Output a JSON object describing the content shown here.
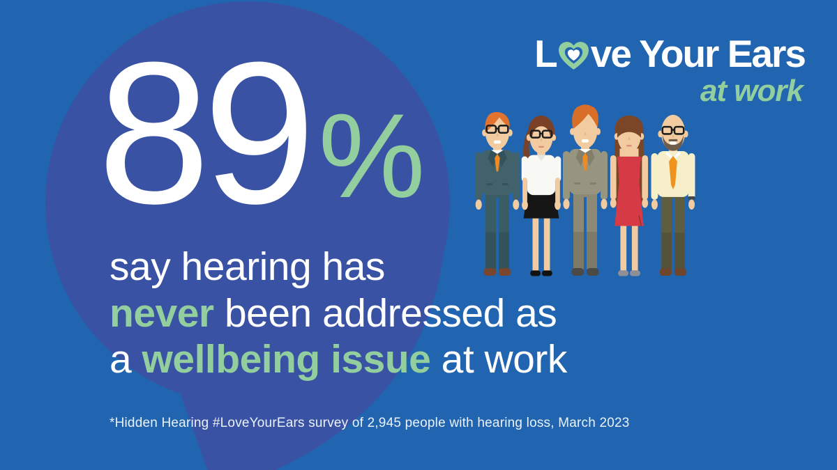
{
  "page": {
    "background": "#2165B0",
    "bubble_color": "#3A52A4"
  },
  "colors": {
    "green": "#92CE9E",
    "white": "#FFFFFF"
  },
  "stat": {
    "value": "89",
    "unit": "%"
  },
  "statement": {
    "lines": [
      [
        {
          "text": "say hearing has",
          "style": "white"
        }
      ],
      [
        {
          "text": "never",
          "style": "green"
        },
        {
          "text": " been addressed as",
          "style": "white"
        }
      ],
      [
        {
          "text": "a ",
          "style": "white"
        },
        {
          "text": "wellbeing issue",
          "style": "green"
        },
        {
          "text": " at work",
          "style": "white"
        }
      ]
    ]
  },
  "footnote": "*Hidden Hearing #LoveYourEars survey of 2,945 people with hearing loss, March 2023",
  "logo": {
    "line1_prefix": "L",
    "line1_suffix": "ve Your Ears",
    "line2": "at work",
    "heart": {
      "outer": "#92CE9E",
      "hole": "#2165B0",
      "center": "#FFFFFF"
    }
  },
  "illustration": {
    "people": [
      {
        "name": "man-orange-hair-teal-suit",
        "hair": "short",
        "glasses": true,
        "beard": false,
        "smile": "teeth",
        "outfit": "suit",
        "colors": {
          "skin": "#F2CBA0",
          "hair": "#E2732E",
          "jacket": "#41626A",
          "lapel": "#33525A",
          "shirt": "#FFFFFF",
          "tie": "#F08A21",
          "pants": "#3A5C64",
          "shoes": "#77462C"
        }
      },
      {
        "name": "woman-glasses-white-blouse-black-skirt",
        "hair": "bangs-ponytail",
        "glasses": true,
        "beard": false,
        "smile": "lips",
        "outfit": "blouse-skirt",
        "colors": {
          "skin": "#F2CBA0",
          "hair": "#7A4126",
          "blouse": "#F8F8F4",
          "skirt": "#161616",
          "shoes": "#121212"
        }
      },
      {
        "name": "man-wavy-orange-hair-grey-suit",
        "hair": "wavy",
        "glasses": false,
        "beard": false,
        "smile": "teeth",
        "outfit": "suit",
        "colors": {
          "skin": "#F2CBA0",
          "hair": "#D76F28",
          "jacket": "#97947F",
          "lapel": "#837F6C",
          "shirt": "#FFFFFF",
          "tie": "#F08A21",
          "pants": "#8C8974",
          "shoes": "#4B4A46"
        }
      },
      {
        "name": "woman-long-hair-red-dress",
        "hair": "long",
        "glasses": false,
        "beard": false,
        "smile": "lips",
        "outfit": "dress",
        "colors": {
          "skin": "#F2CBA0",
          "hair": "#7B4527",
          "dress": "#D63B45",
          "shoes": "#8E8E96"
        }
      },
      {
        "name": "bald-man-beard-cream-shirt-orange-tie",
        "hair": "bald",
        "glasses": true,
        "beard": true,
        "smile": "teeth",
        "outfit": "shirt-tie",
        "colors": {
          "skin": "#F2CBA0",
          "beard": "#6E5D49",
          "shirt": "#F6EFC9",
          "tie": "#F0921E",
          "pants": "#5E5D40",
          "shoes": "#6F452B",
          "watch": "#44484E"
        }
      }
    ]
  }
}
